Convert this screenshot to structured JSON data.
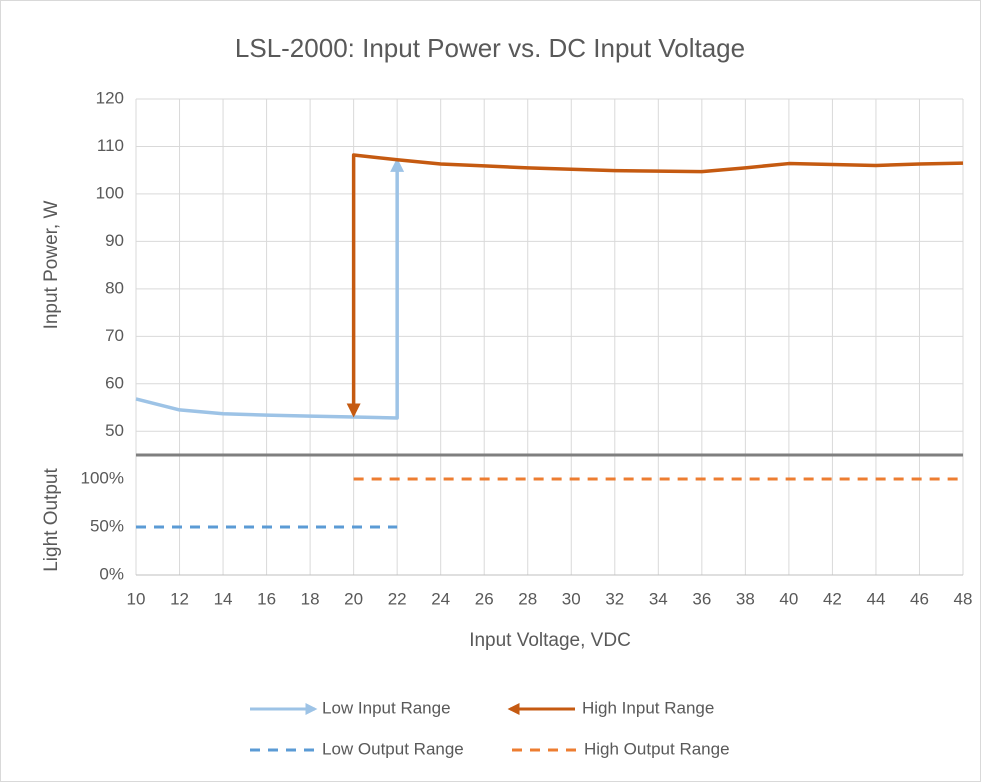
{
  "chart_data": [
    {
      "type": "line",
      "title": "LSL-2000: Input Power vs. DC Input Voltage",
      "ylabel": "Input Power, W",
      "ylim": [
        45,
        120
      ],
      "yticks": [
        50,
        60,
        70,
        80,
        90,
        100,
        110,
        120
      ],
      "grid": "both",
      "series": [
        {
          "name": "Low Input Range",
          "color": "#9dc3e6",
          "arrow": true,
          "x": [
            10,
            12,
            14,
            16,
            18,
            20,
            22,
            22
          ],
          "values": [
            56.8,
            54.5,
            53.7,
            53.4,
            53.2,
            53.0,
            52.8,
            107
          ]
        },
        {
          "name": "High Input Range",
          "color": "#c55a11",
          "arrow": true,
          "x": [
            48,
            46,
            44,
            42,
            40,
            38,
            36,
            34,
            32,
            30,
            28,
            26,
            24,
            22,
            20,
            20
          ],
          "values": [
            106.5,
            106.3,
            106.0,
            106.2,
            106.4,
            105.5,
            104.7,
            104.8,
            104.9,
            105.2,
            105.5,
            105.9,
            106.3,
            107.2,
            108.2,
            53.5
          ]
        }
      ]
    },
    {
      "type": "line",
      "ylabel": "Light Output",
      "xlabel": "Input Voltage, VDC",
      "xlim": [
        10,
        48
      ],
      "xticks": [
        10,
        12,
        14,
        16,
        18,
        20,
        22,
        24,
        26,
        28,
        30,
        32,
        34,
        36,
        38,
        40,
        42,
        44,
        46,
        48
      ],
      "ylim": [
        0,
        125
      ],
      "yticks": [
        {
          "value": 0,
          "label": "0%"
        },
        {
          "value": 50,
          "label": "50%"
        },
        {
          "value": 100,
          "label": "100%"
        }
      ],
      "grid": "x",
      "series": [
        {
          "name": "Low Output Range",
          "color": "#5b9bd5",
          "dashed": true,
          "x": [
            10,
            22
          ],
          "values": [
            50,
            50
          ]
        },
        {
          "name": "High Output Range",
          "color": "#ed7d31",
          "dashed": true,
          "x": [
            20,
            48
          ],
          "values": [
            100,
            100
          ]
        }
      ]
    }
  ]
}
